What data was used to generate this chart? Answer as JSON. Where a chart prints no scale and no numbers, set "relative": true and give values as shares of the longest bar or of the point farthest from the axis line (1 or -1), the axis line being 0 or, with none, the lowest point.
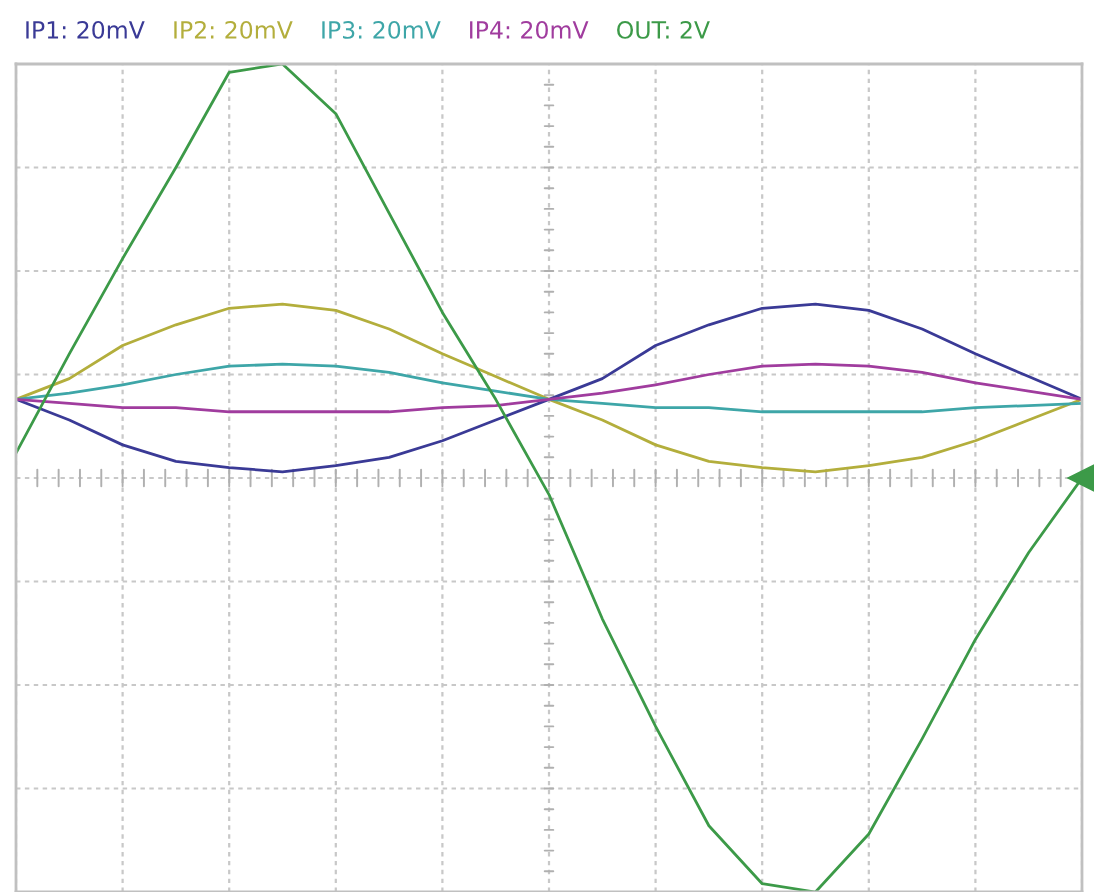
{
  "chart_data": {
    "type": "line",
    "relative": true,
    "grid": true,
    "tick_labels": false,
    "categories": [
      null,
      null,
      null,
      null,
      null,
      null,
      null,
      null,
      null,
      null,
      null,
      null,
      null,
      null,
      null,
      null,
      null,
      null,
      null,
      null,
      null
    ],
    "series": [
      {
        "name": "IP1: 20mV",
        "color": "#3a3a96",
        "values": [
          0.19,
          0.14,
          0.08,
          0.04,
          0.025,
          0.015,
          0.03,
          0.05,
          0.09,
          0.14,
          0.19,
          0.24,
          0.32,
          0.37,
          0.41,
          0.42,
          0.405,
          0.36,
          0.3,
          0.245,
          0.19
        ]
      },
      {
        "name": "IP2: 20mV",
        "color": "#b3ae3c",
        "values": [
          0.19,
          0.24,
          0.32,
          0.37,
          0.41,
          0.42,
          0.405,
          0.36,
          0.3,
          0.245,
          0.19,
          0.14,
          0.08,
          0.04,
          0.025,
          0.015,
          0.03,
          0.05,
          0.09,
          0.14,
          0.19
        ]
      },
      {
        "name": "IP3: 20mV",
        "color": "#3ea6a8",
        "values": [
          0.19,
          0.205,
          0.225,
          0.25,
          0.27,
          0.275,
          0.27,
          0.255,
          0.23,
          0.21,
          0.19,
          0.18,
          0.17,
          0.17,
          0.16,
          0.16,
          0.16,
          0.16,
          0.17,
          0.175,
          0.18
        ]
      },
      {
        "name": "IP4: 20mV",
        "color": "#a03c9e",
        "values": [
          0.19,
          0.18,
          0.17,
          0.17,
          0.16,
          0.16,
          0.16,
          0.16,
          0.17,
          0.175,
          0.19,
          0.205,
          0.225,
          0.25,
          0.27,
          0.275,
          0.27,
          0.255,
          0.23,
          0.21,
          0.19
        ]
      },
      {
        "name": "OUT: 2V",
        "color": "#3c9a48",
        "values": [
          0.06,
          0.3,
          0.53,
          0.75,
          0.98,
          1,
          0.88,
          0.64,
          0.4,
          0.19,
          -0.04,
          -0.34,
          -0.6,
          -0.84,
          -0.98,
          -1,
          -0.86,
          -0.63,
          -0.39,
          -0.18,
          0
        ]
      }
    ]
  }
}
